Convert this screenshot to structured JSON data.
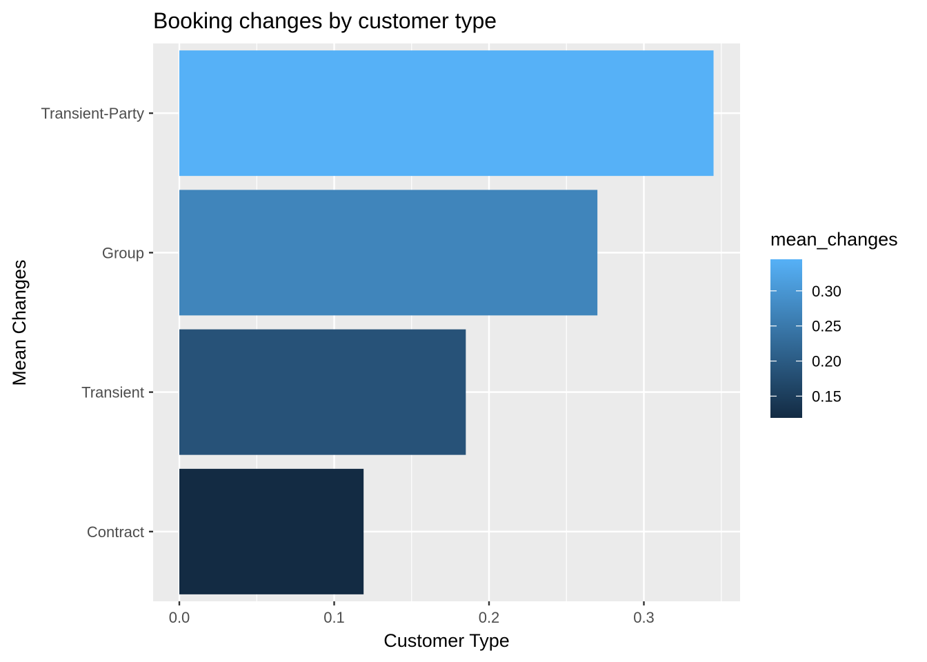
{
  "chart_data": {
    "type": "bar",
    "orientation": "horizontal",
    "title": "Booking changes by customer type",
    "xlabel": "Customer Type",
    "ylabel": "Mean Changes",
    "categories": [
      "Contract",
      "Transient",
      "Group",
      "Transient-Party"
    ],
    "values": [
      0.119,
      0.185,
      0.27,
      0.345
    ],
    "xlim": [
      0,
      0.36
    ],
    "xticks": [
      "0.0",
      "0.1",
      "0.2",
      "0.3"
    ],
    "xtick_values": [
      0.0,
      0.1,
      0.2,
      0.3
    ],
    "grid": true,
    "legend": {
      "title": "mean_changes",
      "position": "right",
      "type": "colorbar",
      "range": [
        0.119,
        0.345
      ],
      "ticks": [
        "0.15",
        "0.20",
        "0.25",
        "0.30"
      ],
      "tick_values": [
        0.15,
        0.2,
        0.25,
        0.3
      ],
      "color_low": "#132B43",
      "color_high": "#56B1F7"
    },
    "panel_background": "#EBEBEB",
    "gridline_color": "#FFFFFF"
  }
}
